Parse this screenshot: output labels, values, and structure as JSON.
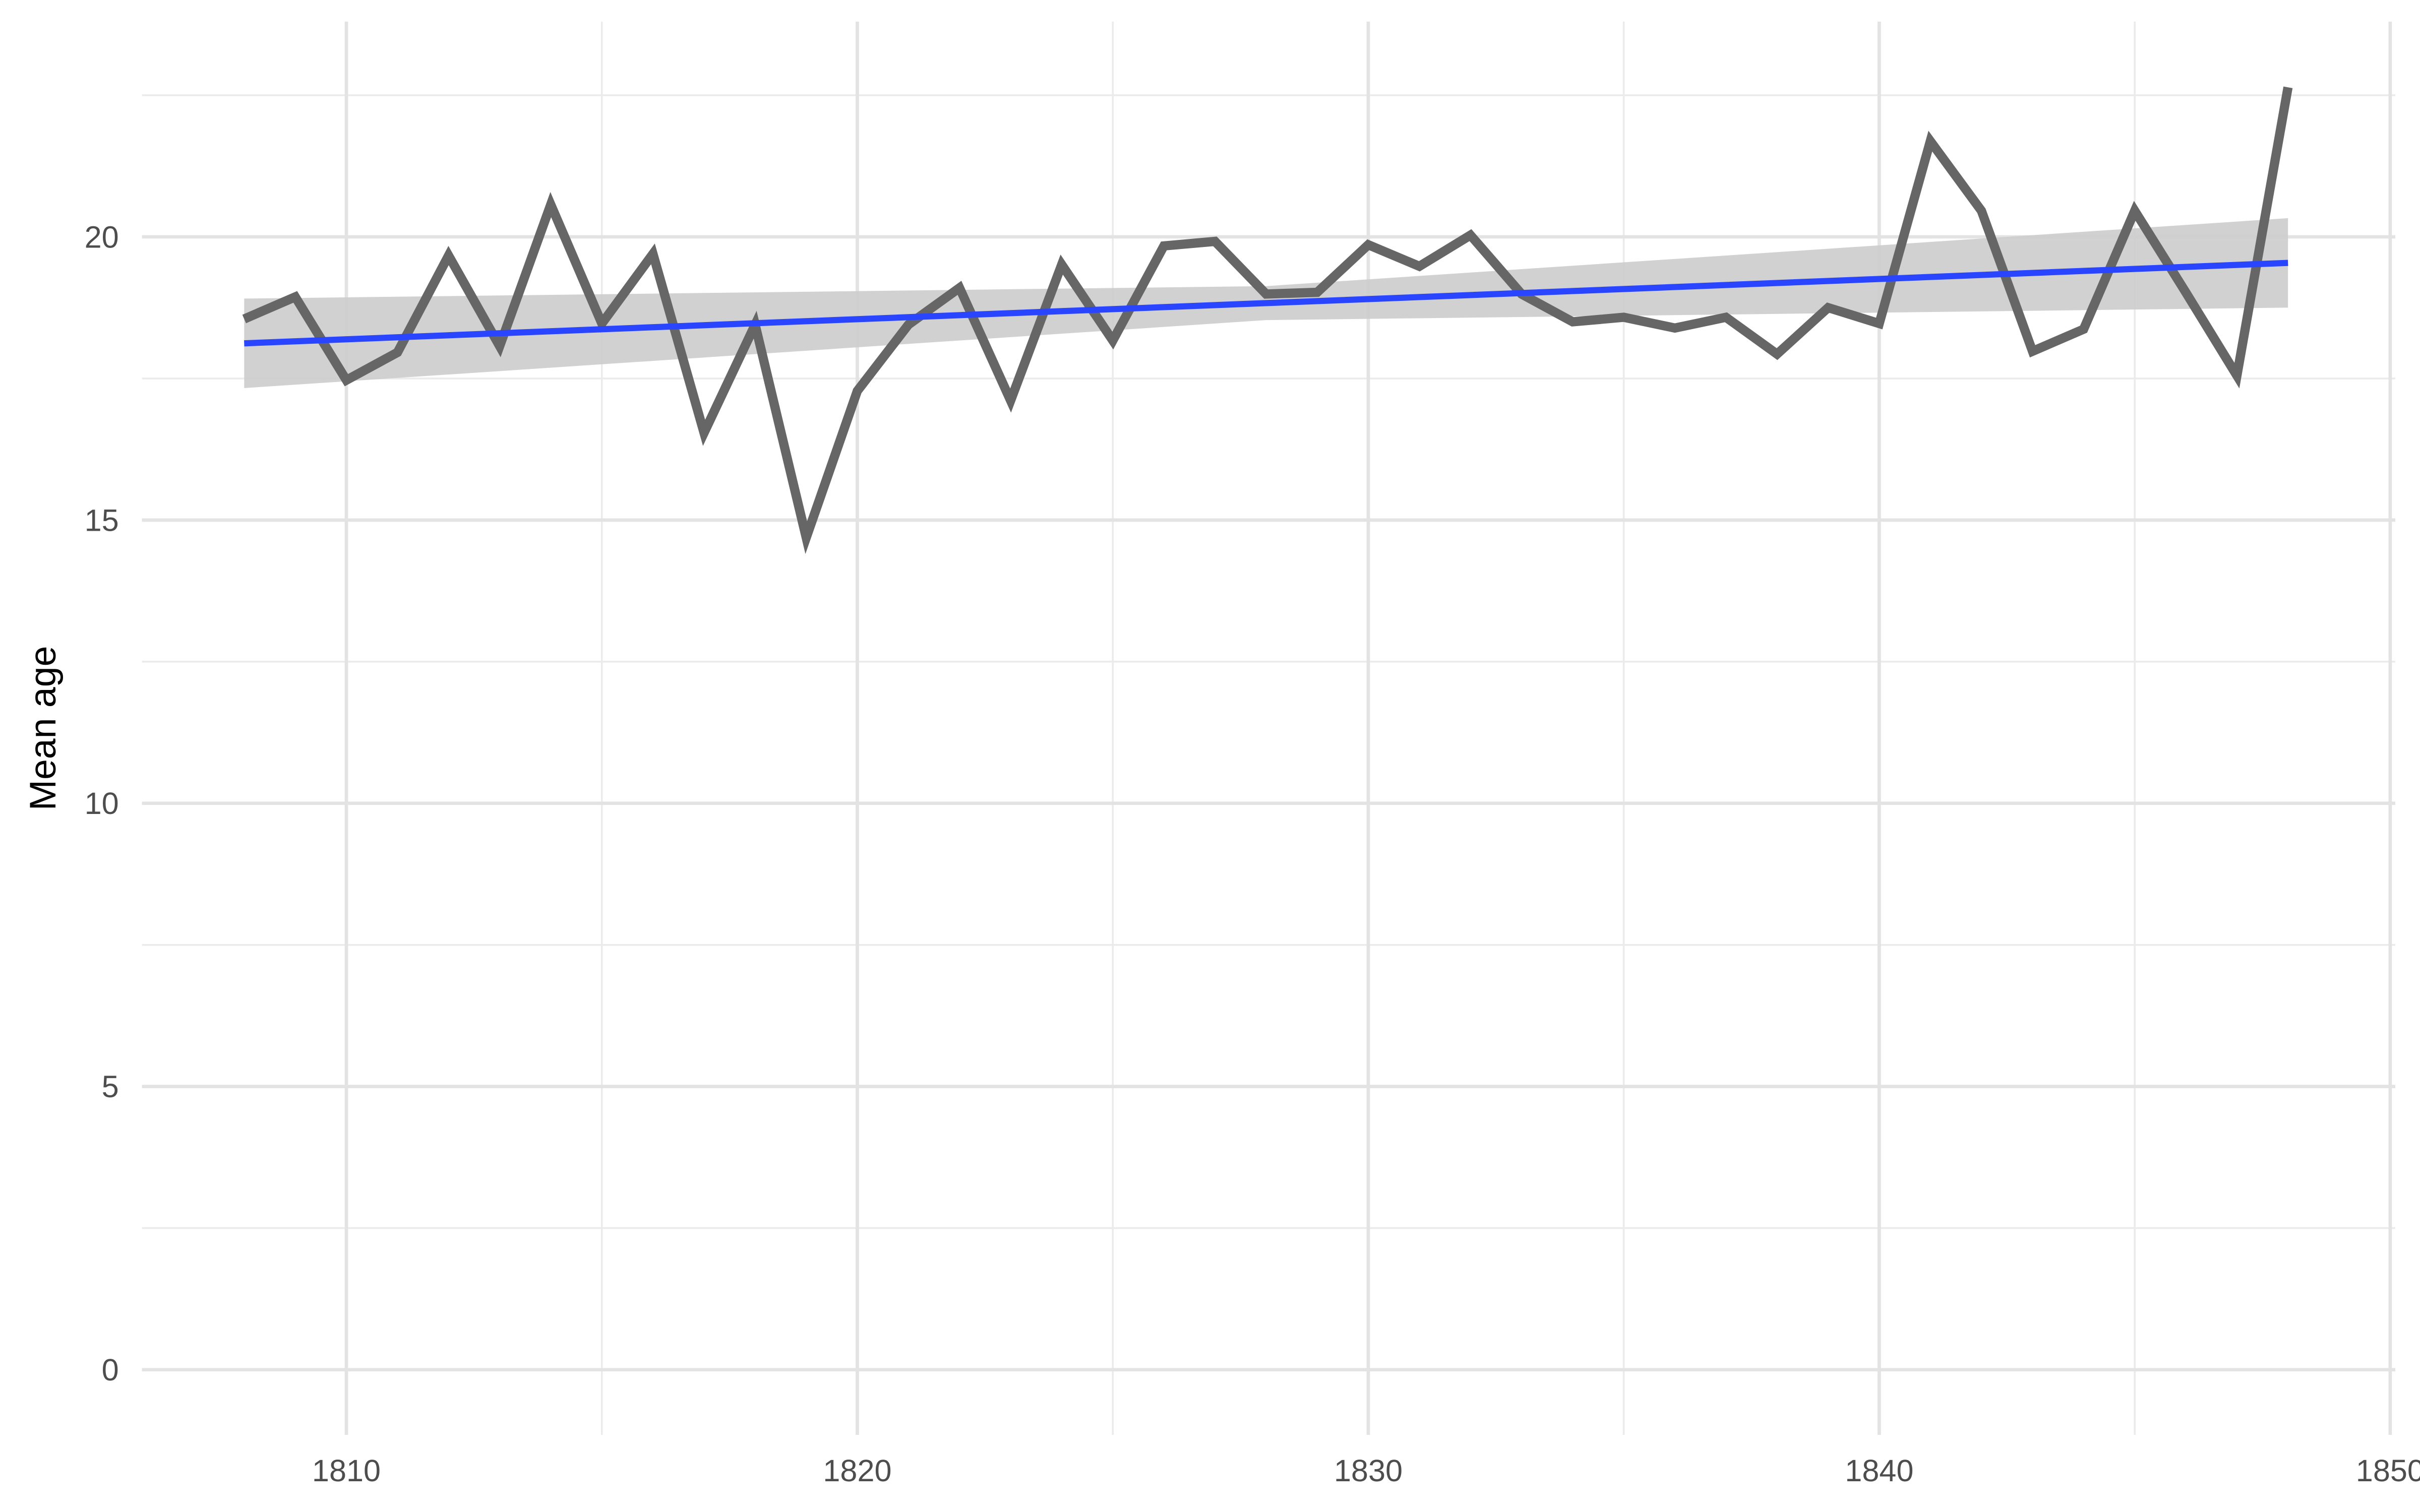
{
  "chart_data": {
    "type": "line",
    "y_label": "Mean age",
    "x": [
      1808,
      1809,
      1810,
      1811,
      1812,
      1813,
      1814,
      1815,
      1816,
      1817,
      1818,
      1819,
      1820,
      1821,
      1822,
      1823,
      1824,
      1825,
      1826,
      1827,
      1828,
      1829,
      1830,
      1831,
      1832,
      1833,
      1834,
      1835,
      1836,
      1837,
      1838,
      1839,
      1840,
      1841,
      1842,
      1843,
      1844,
      1845,
      1846,
      1847,
      1848
    ],
    "series": [
      {
        "color": "#666666",
        "values": [
          18.55,
          18.94,
          17.47,
          17.96,
          19.67,
          18.07,
          20.57,
          18.47,
          19.7,
          16.54,
          18.45,
          14.69,
          17.28,
          18.45,
          19.1,
          17.11,
          19.51,
          18.17,
          19.84,
          19.92,
          18.99,
          19.02,
          19.86,
          19.48,
          20.03,
          18.99,
          18.5,
          18.58,
          18.39,
          18.58,
          17.93,
          18.75,
          18.47,
          21.69,
          20.46,
          17.98,
          18.37,
          20.46,
          19.02,
          17.55,
          22.64
        ]
      }
    ],
    "trend": {
      "color": "#2a45ff",
      "band_color": "#cccccc",
      "x": [
        1808,
        1828,
        1848
      ],
      "values": [
        18.12,
        18.83,
        19.54
      ],
      "band_lower": [
        17.33,
        18.53,
        18.75
      ],
      "band_upper": [
        18.91,
        19.13,
        20.33
      ]
    },
    "xlim": [
      1806,
      1850.1
    ],
    "ylim": [
      -1.15,
      23.8
    ],
    "xticks": [
      1810,
      1820,
      1830,
      1840,
      1850
    ],
    "yticks": [
      0,
      5,
      10,
      15,
      20
    ],
    "xminor": [
      1815,
      1825,
      1835,
      1845
    ],
    "yminor": [
      2.5,
      7.5,
      12.5,
      17.5,
      22.5
    ],
    "grid": true
  }
}
